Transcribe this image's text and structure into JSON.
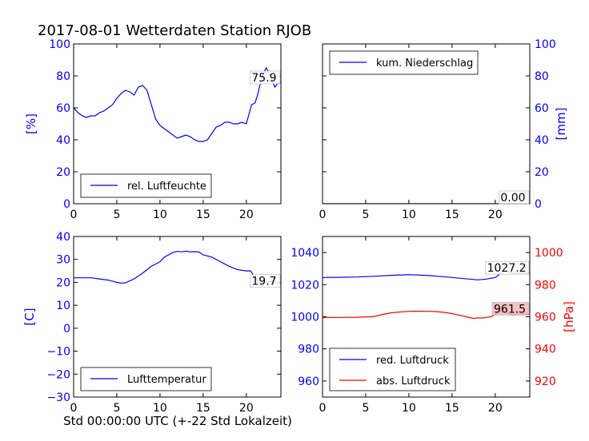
{
  "figure": {
    "title": "2017-08-01 Wetterdaten Station RJOB",
    "xlabel": "Std 00:00:00 UTC (+-22 Std Lokalzeit)"
  },
  "colors": {
    "blue": "#0000ff",
    "red": "#ff0000",
    "axis": "#000000"
  },
  "chart_data": [
    {
      "type": "line",
      "panel": "top-left",
      "ylabel": "[%]",
      "xlim": [
        0,
        24
      ],
      "ylim": [
        0,
        100
      ],
      "xticks": [
        "0",
        "5",
        "10",
        "15",
        "20"
      ],
      "yticks": [
        "0",
        "20",
        "40",
        "60",
        "80",
        "100"
      ],
      "legend": "bottom-left",
      "last_value_label": "75.9",
      "series": [
        {
          "name": "rel. Luftfeuchte",
          "color": "#0000ff",
          "x": [
            0,
            0.5,
            1,
            1.5,
            2,
            2.5,
            3,
            3.5,
            4,
            4.5,
            5,
            5.5,
            6,
            6.5,
            7,
            7.5,
            8,
            8.5,
            9,
            9.5,
            10,
            10.5,
            11,
            11.5,
            12,
            12.5,
            13,
            13.5,
            14,
            14.5,
            15,
            15.5,
            16,
            16.5,
            17,
            17.5,
            18,
            18.5,
            19,
            19.5,
            20,
            20.3,
            20.6,
            21,
            21.3,
            21.6,
            22,
            22.3,
            22.6,
            23,
            23.3,
            23.6,
            24
          ],
          "y": [
            60,
            57,
            55,
            54,
            55,
            55,
            57,
            58,
            60,
            62,
            66,
            69,
            71,
            70,
            68,
            73,
            74,
            71,
            62,
            53,
            49,
            47,
            45,
            43,
            41,
            42,
            43,
            42,
            40,
            39,
            39,
            40,
            44,
            48,
            49,
            51,
            51,
            50,
            50,
            51,
            50,
            56,
            62,
            63,
            68,
            75,
            82,
            85,
            82,
            77,
            73,
            75,
            76
          ]
        }
      ]
    },
    {
      "type": "line",
      "panel": "top-right",
      "ylabel": "[mm]",
      "xlim": [
        0,
        24
      ],
      "ylim": [
        0,
        100
      ],
      "xticks": [
        "0",
        "5",
        "10",
        "15",
        "20"
      ],
      "yticks": [
        "0",
        "20",
        "40",
        "60",
        "80",
        "100"
      ],
      "legend": "top-left",
      "last_value_label": "0.00",
      "series": [
        {
          "name": "kum. Niederschlag",
          "color": "#0000ff",
          "x": [
            0,
            24
          ],
          "y": [
            0,
            0
          ]
        }
      ]
    },
    {
      "type": "line",
      "panel": "bottom-left",
      "ylabel": "[C]",
      "xlim": [
        0,
        24
      ],
      "ylim": [
        -30,
        40
      ],
      "xticks": [
        "0",
        "5",
        "10",
        "15",
        "20"
      ],
      "yticks": [
        "−30",
        "−20",
        "−10",
        "0",
        "10",
        "20",
        "30",
        "40"
      ],
      "legend": "bottom-left",
      "last_value_label": "19.7",
      "series": [
        {
          "name": "Lufttemperatur",
          "color": "#0000ff",
          "x": [
            0,
            1,
            2,
            3,
            4,
            5,
            5.5,
            6,
            7,
            8,
            9,
            9.5,
            10,
            10.5,
            11,
            11.5,
            12,
            12.5,
            13,
            13.5,
            14,
            14.5,
            15,
            15.5,
            16,
            17,
            18,
            19,
            20,
            20.5,
            21,
            21.5,
            22,
            22.5,
            23,
            23.5,
            24
          ],
          "y": [
            22,
            22,
            22,
            21.5,
            21,
            20,
            19.7,
            19.8,
            21.5,
            24,
            27,
            28,
            29,
            31,
            32,
            33,
            33.5,
            33.3,
            33.6,
            33.3,
            33.4,
            33.2,
            32,
            31.5,
            31,
            29,
            27,
            25.5,
            25,
            25,
            22,
            20,
            19.8,
            20.2,
            20.5,
            19.8,
            19.7
          ]
        }
      ]
    },
    {
      "type": "line",
      "panel": "bottom-right",
      "ylabel": "[hPa]",
      "xlim": [
        0,
        24
      ],
      "ylim_left": [
        950,
        1050
      ],
      "ylim_right": [
        910,
        1010
      ],
      "xticks": [
        "0",
        "5",
        "10",
        "15",
        "20"
      ],
      "yticks_left": [
        "960",
        "980",
        "1000",
        "1020",
        "1040"
      ],
      "yticks_right": [
        "920",
        "940",
        "960",
        "980",
        "1000"
      ],
      "legend": "bottom-left",
      "last_value_label_1": "1027.2",
      "last_value_label_2": "961.5",
      "series": [
        {
          "name": "red. Luftdruck",
          "color": "#0000ff",
          "axis": "left",
          "x": [
            0,
            2,
            4,
            6,
            8,
            10,
            12,
            14,
            16,
            18,
            19,
            20,
            20.5,
            21,
            21.5,
            22,
            23,
            24
          ],
          "y": [
            1024.5,
            1024.6,
            1024.8,
            1025.2,
            1025.8,
            1026.2,
            1025.8,
            1025,
            1024,
            1023,
            1023.5,
            1024.5,
            1026.5,
            1028.5,
            1028,
            1027,
            1027.4,
            1027.2
          ]
        },
        {
          "name": "abs. Luftdruck",
          "color": "#ff0000",
          "axis": "right",
          "x": [
            0,
            2,
            4,
            5.5,
            6,
            7,
            8,
            9,
            10,
            11,
            12,
            13,
            14,
            15,
            16,
            17,
            17.5,
            18,
            18.5,
            19,
            19.5,
            20,
            20.5,
            21,
            21.5,
            22,
            23,
            24
          ],
          "y": [
            959.5,
            959.6,
            959.7,
            960,
            960.2,
            961.5,
            962.5,
            963,
            963.4,
            963.5,
            963.4,
            963.3,
            962.8,
            962,
            960.8,
            959.5,
            959,
            959.3,
            959.2,
            959.6,
            960,
            961.5,
            963.5,
            964.5,
            962,
            961,
            962,
            961.5
          ]
        }
      ]
    }
  ]
}
